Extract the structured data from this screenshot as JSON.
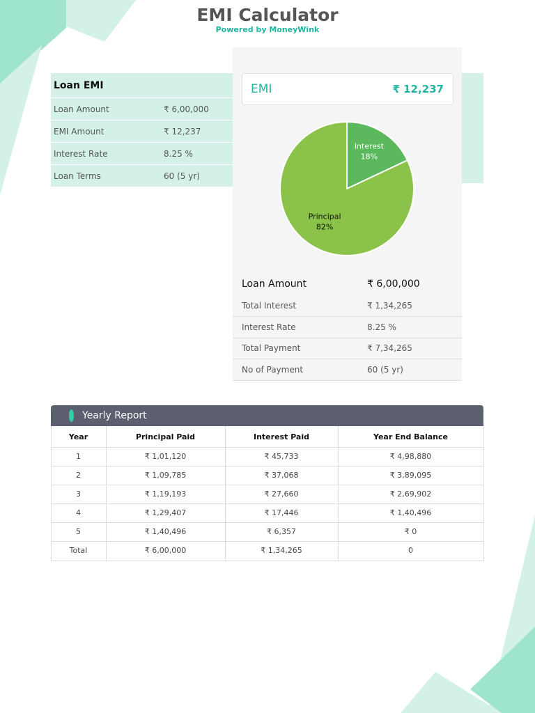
{
  "header": {
    "title": "EMI Calculator",
    "subtitle": "Powered by MoneyWink"
  },
  "loan_emi": {
    "title": "Loan EMI",
    "rows": [
      [
        "Loan Amount",
        "₹ 6,00,000"
      ],
      [
        "EMI Amount",
        "₹ 12,237"
      ],
      [
        "Interest Rate",
        "8.25 %"
      ],
      [
        "Loan Terms",
        "60 (5 yr)"
      ]
    ]
  },
  "emi_card": {
    "label": "EMI",
    "value": "₹ 12,237"
  },
  "chart_data": {
    "type": "pie",
    "categories": [
      "Interest",
      "Principal"
    ],
    "values": [
      18,
      82
    ],
    "value_labels": [
      "18%",
      "82%"
    ],
    "colors": [
      "#5cb85c",
      "#8bc34a"
    ]
  },
  "summary": {
    "rows": [
      [
        "Loan Amount",
        "₹ 6,00,000"
      ],
      [
        "Total Interest",
        "₹ 1,34,265"
      ],
      [
        "Interest Rate",
        "8.25 %"
      ],
      [
        "Total Payment",
        "₹ 7,34,265"
      ],
      [
        "No of Payment",
        "60 (5 yr)"
      ]
    ]
  },
  "yearly_report": {
    "title": "Yearly Report",
    "columns": [
      "Year",
      "Principal Paid",
      "Interest Paid",
      "Year End Balance"
    ],
    "rows": [
      [
        "1",
        "₹ 1,01,120",
        "₹ 45,733",
        "₹ 4,98,880"
      ],
      [
        "2",
        "₹ 1,09,785",
        "₹ 37,068",
        "₹ 3,89,095"
      ],
      [
        "3",
        "₹ 1,19,193",
        "₹ 27,660",
        "₹ 2,69,902"
      ],
      [
        "4",
        "₹ 1,29,407",
        "₹ 17,446",
        "₹ 1,40,496"
      ],
      [
        "5",
        "₹ 1,40,496",
        "₹ 6,357",
        "₹ 0"
      ],
      [
        "Total",
        "₹ 6,00,000",
        "₹ 1,34,265",
        "0"
      ]
    ]
  }
}
